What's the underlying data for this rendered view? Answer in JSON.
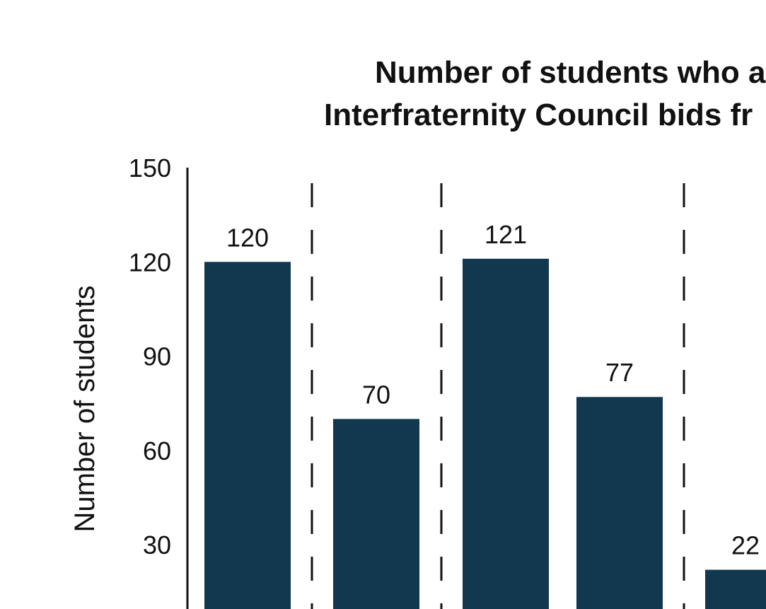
{
  "chart_data": {
    "type": "bar",
    "title_lines": [
      "Number of students who a",
      "Interfraternity Council bids fr"
    ],
    "xlabel": "",
    "ylabel": "Number of students",
    "ylim": [
      0,
      150
    ],
    "yticks": [
      30,
      60,
      90,
      120,
      150
    ],
    "grid": false,
    "bar_color": "#12384F",
    "values": [
      120,
      70,
      121,
      77,
      22
    ],
    "value_labels": [
      "120",
      "70",
      "121",
      "77",
      "22"
    ],
    "group_separators": "dashed vertical lines"
  }
}
